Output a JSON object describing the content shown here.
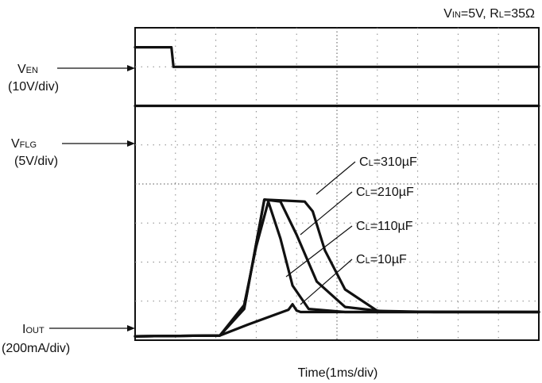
{
  "conditions": {
    "vin_main": "V",
    "vin_sub": "IN",
    "vin_val": "=5V, ",
    "rl_main": "R",
    "rl_sub": "L",
    "rl_val": "=35Ω"
  },
  "labels": {
    "ven_main": "V",
    "ven_sub": "EN",
    "ven_scale": "(10V/div)",
    "vflg_main": "V",
    "vflg_sub": "FLG",
    "vflg_scale": "(5V/div)",
    "iout_main": "I",
    "iout_sub": "OUT",
    "iout_scale": "(200mA/div)",
    "xaxis": "Time(1ms/div)"
  },
  "chart_data": {
    "type": "line",
    "title": "",
    "xlabel": "Time(1ms/div)",
    "x_divisions": 10,
    "y_divisions": 8,
    "grid": true,
    "series": [
      {
        "name": "CL=310µF",
        "label_main": "C",
        "label_sub": "L",
        "label_val": "=310µF",
        "points": [
          [
            0,
            0.1
          ],
          [
            2.1,
            0.12
          ],
          [
            2.7,
            0.8
          ],
          [
            3.2,
            3.6
          ],
          [
            4.2,
            3.55
          ],
          [
            4.4,
            3.3
          ],
          [
            4.7,
            2.3
          ],
          [
            5.2,
            1.3
          ],
          [
            6,
            0.75
          ],
          [
            7.4,
            0.72
          ],
          [
            10,
            0.72
          ]
        ]
      },
      {
        "name": "CL=210µF",
        "label_main": "C",
        "label_sub": "L",
        "label_val": "=210µF",
        "points": [
          [
            0,
            0.1
          ],
          [
            2.1,
            0.12
          ],
          [
            2.7,
            0.8
          ],
          [
            3.2,
            3.6
          ],
          [
            3.6,
            3.55
          ],
          [
            4,
            2.7
          ],
          [
            4.5,
            1.5
          ],
          [
            5.2,
            0.85
          ],
          [
            6.2,
            0.73
          ],
          [
            10,
            0.72
          ]
        ]
      },
      {
        "name": "CL=110µF",
        "label_main": "C",
        "label_sub": "L",
        "label_val": "=110µF",
        "points": [
          [
            0,
            0.1
          ],
          [
            2.1,
            0.12
          ],
          [
            2.7,
            0.9
          ],
          [
            3.0,
            2.4
          ],
          [
            3.3,
            3.55
          ],
          [
            3.6,
            2.6
          ],
          [
            3.9,
            1.4
          ],
          [
            4.3,
            0.8
          ],
          [
            5.2,
            0.72
          ],
          [
            10,
            0.72
          ]
        ]
      },
      {
        "name": "CL=10µF",
        "label_main": "C",
        "label_sub": "L",
        "label_val": "=10µF",
        "points": [
          [
            0,
            0.1
          ],
          [
            2.1,
            0.12
          ],
          [
            2.8,
            0.4
          ],
          [
            3.8,
            0.78
          ],
          [
            3.9,
            0.92
          ],
          [
            4.0,
            0.76
          ],
          [
            4.1,
            0.72
          ],
          [
            10,
            0.72
          ]
        ]
      },
      {
        "name": "VEN",
        "points": [
          [
            0,
            7.5
          ],
          [
            0.9,
            7.5
          ],
          [
            0.95,
            7.0
          ],
          [
            10,
            7.0
          ]
        ]
      },
      {
        "name": "VFLG",
        "points": [
          [
            0,
            6.0
          ],
          [
            10,
            6.0
          ]
        ]
      }
    ]
  }
}
